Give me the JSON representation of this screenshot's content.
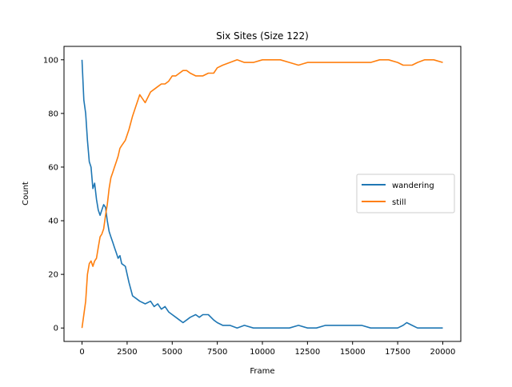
{
  "chart_data": {
    "type": "line",
    "title": "Six Sites (Size 122)",
    "xlabel": "Frame",
    "ylabel": "Count",
    "xlim": [
      -1000,
      21000
    ],
    "ylim": [
      -5,
      105
    ],
    "xticks": [
      0,
      2500,
      5000,
      7500,
      10000,
      12500,
      15000,
      17500,
      20000
    ],
    "yticks": [
      0,
      20,
      40,
      60,
      80,
      100
    ],
    "grid": false,
    "legend_position": "center-right",
    "series": [
      {
        "name": "wandering",
        "color": "#1f77b4",
        "x": [
          0,
          100,
          200,
          300,
          400,
          500,
          600,
          700,
          800,
          900,
          1000,
          1100,
          1200,
          1300,
          1400,
          1500,
          1600,
          1700,
          1800,
          1900,
          2000,
          2100,
          2200,
          2400,
          2600,
          2800,
          3000,
          3200,
          3500,
          3800,
          4000,
          4200,
          4400,
          4600,
          4800,
          5000,
          5200,
          5400,
          5600,
          5800,
          6000,
          6300,
          6500,
          6700,
          7000,
          7300,
          7500,
          7800,
          8200,
          8600,
          9000,
          9500,
          10000,
          10500,
          11000,
          11500,
          12000,
          12500,
          13000,
          13500,
          14000,
          14500,
          15000,
          15500,
          16000,
          16500,
          17000,
          17500,
          17800,
          18000,
          18300,
          18600,
          19000,
          19500,
          20000
        ],
        "y": [
          100,
          85,
          80,
          70,
          62,
          60,
          52,
          54,
          48,
          44,
          42,
          44,
          46,
          45,
          40,
          36,
          34,
          32,
          30,
          28,
          26,
          27,
          24,
          23,
          17,
          12,
          11,
          10,
          9,
          10,
          8,
          9,
          7,
          8,
          6,
          5,
          4,
          3,
          2,
          3,
          4,
          5,
          4,
          5,
          5,
          3,
          2,
          1,
          1,
          0,
          1,
          0,
          0,
          0,
          0,
          0,
          1,
          0,
          0,
          1,
          1,
          1,
          1,
          1,
          0,
          0,
          0,
          0,
          1,
          2,
          1,
          0,
          0,
          0,
          0
        ]
      },
      {
        "name": "still",
        "color": "#ff7f0e",
        "x": [
          0,
          100,
          200,
          300,
          400,
          500,
          600,
          700,
          800,
          900,
          1000,
          1100,
          1200,
          1300,
          1400,
          1500,
          1600,
          1700,
          1800,
          1900,
          2000,
          2100,
          2200,
          2400,
          2600,
          2800,
          3000,
          3200,
          3500,
          3800,
          4000,
          4200,
          4400,
          4600,
          4800,
          5000,
          5200,
          5400,
          5600,
          5800,
          6000,
          6300,
          6500,
          6700,
          7000,
          7300,
          7500,
          7800,
          8200,
          8600,
          9000,
          9500,
          10000,
          10500,
          11000,
          11500,
          12000,
          12500,
          13000,
          13500,
          14000,
          14500,
          15000,
          15500,
          16000,
          16500,
          17000,
          17500,
          17800,
          18000,
          18300,
          18600,
          19000,
          19500,
          20000
        ],
        "y": [
          0,
          5,
          10,
          20,
          24,
          25,
          23,
          25,
          26,
          30,
          34,
          35,
          37,
          42,
          46,
          52,
          56,
          58,
          60,
          62,
          64,
          67,
          68,
          70,
          74,
          79,
          83,
          87,
          84,
          88,
          89,
          90,
          91,
          91,
          92,
          94,
          94,
          95,
          96,
          96,
          95,
          94,
          94,
          94,
          95,
          95,
          97,
          98,
          99,
          100,
          99,
          99,
          100,
          100,
          100,
          99,
          98,
          99,
          99,
          99,
          99,
          99,
          99,
          99,
          99,
          100,
          100,
          99,
          98,
          98,
          98,
          99,
          100,
          100,
          99
        ]
      }
    ]
  }
}
